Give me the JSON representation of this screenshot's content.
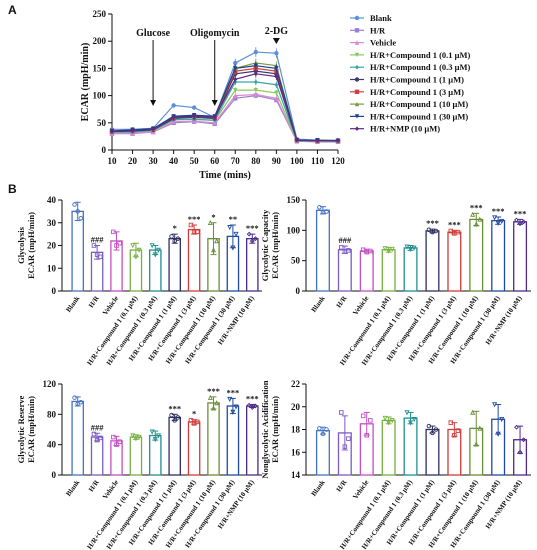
{
  "figure": {
    "panel_a_label": "A",
    "panel_b_label": "B"
  },
  "chart_data": [
    {
      "id": "panel-a",
      "type": "line",
      "xlabel": "Time (mins)",
      "ylabel": "ECAR (mpH/min)",
      "xlim": [
        10,
        120
      ],
      "ylim": [
        0,
        250
      ],
      "x_ticks": [
        10,
        20,
        30,
        40,
        50,
        60,
        70,
        80,
        90,
        100,
        110,
        120
      ],
      "y_ticks": [
        0,
        50,
        100,
        150,
        200,
        250
      ],
      "annotations": [
        {
          "text": "Glucose",
          "x": 30
        },
        {
          "text": "Oligomycin",
          "x": 60
        },
        {
          "text": "2-DG",
          "x": 90
        }
      ],
      "legend_position": "right",
      "x": [
        10,
        20,
        30,
        40,
        50,
        60,
        70,
        80,
        90,
        100,
        110,
        120
      ],
      "series": [
        {
          "name": "Blank",
          "color": "#5b8fd6",
          "marker": "circle",
          "values": [
            38,
            38,
            40,
            82,
            78,
            60,
            160,
            180,
            178,
            20,
            18,
            18
          ]
        },
        {
          "name": "H/R",
          "color": "#9b7fd4",
          "marker": "square",
          "values": [
            30,
            30,
            33,
            50,
            52,
            48,
            95,
            100,
            92,
            16,
            15,
            15
          ]
        },
        {
          "name": "Vehicle",
          "color": "#d987d6",
          "marker": "triangle",
          "values": [
            30,
            31,
            33,
            52,
            53,
            50,
            100,
            102,
            95,
            17,
            16,
            16
          ]
        },
        {
          "name": "H/R+Compound 1 (0.1 μM)",
          "color": "#8fc85a",
          "marker": "triangle-down",
          "values": [
            32,
            33,
            35,
            55,
            57,
            54,
            110,
            110,
            105,
            17,
            16,
            16
          ]
        },
        {
          "name": "H/R+Compound 1 (0.3 μM)",
          "color": "#3aa6a6",
          "marker": "diamond",
          "values": [
            33,
            33,
            36,
            56,
            56,
            55,
            125,
            125,
            120,
            17,
            17,
            16
          ]
        },
        {
          "name": "H/R+Compound 1 (1 μM)",
          "color": "#3a3a6e",
          "marker": "circle",
          "values": [
            34,
            35,
            37,
            58,
            60,
            58,
            140,
            145,
            140,
            18,
            17,
            17
          ]
        },
        {
          "name": "H/R+Compound 1 (3 μM)",
          "color": "#d23f3f",
          "marker": "square",
          "values": [
            34,
            36,
            38,
            60,
            62,
            60,
            145,
            150,
            145,
            18,
            17,
            17
          ]
        },
        {
          "name": "H/R+Compound 1 (10 μM)",
          "color": "#7a9a3a",
          "marker": "triangle",
          "values": [
            35,
            36,
            39,
            62,
            63,
            62,
            150,
            160,
            155,
            18,
            18,
            17
          ]
        },
        {
          "name": "H/R+Compound 1 (30 μM)",
          "color": "#1f3f8f",
          "marker": "triangle-down",
          "values": [
            35,
            37,
            39,
            62,
            64,
            62,
            150,
            155,
            150,
            18,
            18,
            17
          ]
        },
        {
          "name": "H/R+NMP (10 μM)",
          "color": "#5b2a86",
          "marker": "diamond",
          "values": [
            34,
            35,
            38,
            60,
            62,
            60,
            130,
            140,
            135,
            18,
            17,
            17
          ]
        }
      ]
    },
    {
      "id": "glycolysis",
      "type": "bar",
      "ylabel": "Glycolysis\nECAR (mpH/min)",
      "ylim": [
        0,
        40
      ],
      "y_ticks": [
        0,
        10,
        20,
        30,
        40
      ],
      "categories": [
        "Blank",
        "H/R",
        "Vehicle",
        "H/R+Compound 1 (0.1 μM)",
        "H/R+Compound 1 (0.3 μM)",
        "H/R+Compound 1 (1 μM)",
        "H/R+Compound 1 (3 μM)",
        "H/R+Compound 1 (10 μM)",
        "H/R+Compound 1 (30 μM)",
        "H/R+NMP (10 μM)"
      ],
      "values": [
        35,
        17,
        22,
        18,
        18,
        23,
        27,
        23,
        24,
        23
      ],
      "errors": [
        4,
        3,
        4,
        3,
        2,
        2,
        2,
        7,
        5,
        2
      ],
      "points": [
        [
          38,
          35,
          32
        ],
        [
          20,
          16,
          15
        ],
        [
          26,
          20,
          21
        ],
        [
          20,
          15,
          18
        ],
        [
          20,
          16,
          18
        ],
        [
          24,
          22,
          23
        ],
        [
          29,
          26,
          26
        ],
        [
          30,
          18,
          22
        ],
        [
          28,
          19,
          25
        ],
        [
          25,
          22,
          23
        ]
      ],
      "sig": [
        "",
        "###",
        "",
        "",
        "",
        "*",
        "***",
        "*",
        "**",
        "***"
      ]
    },
    {
      "id": "glycolytic-capacity",
      "type": "bar",
      "ylabel": "Glycolytic Capacity\nECAR (mpH/min)",
      "ylim": [
        0,
        150
      ],
      "y_ticks": [
        0,
        50,
        100,
        150
      ],
      "categories": [
        "Blank",
        "H/R",
        "Vehicle",
        "H/R+Compound 1 (0.1 μM)",
        "H/R+Compound 1 (0.3 μM)",
        "H/R+Compound 1 (1 μM)",
        "H/R+Compound 1 (3 μM)",
        "H/R+Compound 1 (10 μM)",
        "H/R+Compound 1 (30 μM)",
        "H/R+NMP (10 μM)"
      ],
      "values": [
        133,
        68,
        66,
        68,
        71,
        99,
        97,
        118,
        116,
        114
      ],
      "errors": [
        6,
        6,
        3,
        4,
        4,
        3,
        3,
        10,
        6,
        4
      ],
      "points": [
        [
          138,
          130,
          131
        ],
        [
          72,
          65,
          67
        ],
        [
          68,
          64,
          66
        ],
        [
          70,
          66,
          69
        ],
        [
          73,
          69,
          71
        ],
        [
          101,
          97,
          99
        ],
        [
          99,
          95,
          97
        ],
        [
          126,
          110,
          118
        ],
        [
          121,
          112,
          115
        ],
        [
          117,
          111,
          114
        ]
      ],
      "sig": [
        "",
        "###",
        "",
        "",
        "",
        "***",
        "***",
        "***",
        "***",
        "***"
      ]
    },
    {
      "id": "glycolytic-reserve",
      "type": "bar",
      "ylabel": "Glycolytic Reserve\nECAR (mpH/min)",
      "ylim": [
        0,
        120
      ],
      "y_ticks": [
        0,
        40,
        80,
        120
      ],
      "categories": [
        "Blank",
        "H/R",
        "Vehicle",
        "H/R+Compound 1 (0.1 μM)",
        "H/R+Compound 1 (0.3 μM)",
        "H/R+Compound 1 (1 μM)",
        "H/R+Compound 1 (3 μM)",
        "H/R+Compound 1 (10 μM)",
        "H/R+Compound 1 (30 μM)",
        "H/R+NMP (10 μM)"
      ],
      "values": [
        97,
        50,
        45,
        50,
        52,
        76,
        70,
        95,
        91,
        91
      ],
      "errors": [
        6,
        5,
        6,
        3,
        6,
        4,
        3,
        8,
        10,
        2
      ],
      "points": [
        [
          102,
          94,
          96
        ],
        [
          54,
          46,
          49
        ],
        [
          50,
          40,
          44
        ],
        [
          52,
          48,
          50
        ],
        [
          57,
          47,
          52
        ],
        [
          79,
          72,
          76
        ],
        [
          72,
          68,
          70
        ],
        [
          102,
          88,
          95
        ],
        [
          100,
          83,
          90
        ],
        [
          92,
          89,
          91
        ]
      ],
      "sig": [
        "",
        "###",
        "",
        "",
        "",
        "***",
        "*",
        "***",
        "***",
        "***"
      ]
    },
    {
      "id": "non-glycolytic-acidification",
      "type": "bar",
      "ylabel": "Nonglycolytic Acidification\nECAR (mpH/min)",
      "ylim": [
        14,
        22
      ],
      "y_ticks": [
        14,
        16,
        18,
        20,
        22
      ],
      "categories": [
        "Blank",
        "H/R",
        "Vehicle",
        "H/R+Compound 1 (0.1 μM)",
        "H/R+Compound 1 (0.3 μM)",
        "H/R+Compound 1 (1 μM)",
        "H/R+Compound 1 (3 μM)",
        "H/R+Compound 1 (10 μM)",
        "H/R+Compound 1 (30 μM)",
        "H/R+NMP (10 μM)"
      ],
      "values": [
        17.9,
        17.7,
        18.5,
        18.8,
        19.0,
        18.0,
        18.0,
        18.1,
        18.9,
        17.1
      ],
      "errors": [
        0.3,
        1.5,
        1.0,
        0.3,
        0.5,
        0.3,
        0.6,
        1.5,
        1.3,
        1.2
      ],
      "points": [
        [
          18.1,
          17.6,
          18.0
        ],
        [
          19.5,
          16.5,
          17.2
        ],
        [
          19.2,
          17.5,
          18.8
        ],
        [
          19.0,
          18.6,
          18.8
        ],
        [
          19.5,
          18.6,
          18.9
        ],
        [
          18.3,
          17.7,
          18.0
        ],
        [
          18.6,
          17.5,
          17.9
        ],
        [
          19.5,
          16.7,
          18.1
        ],
        [
          20.2,
          17.6,
          18.9
        ],
        [
          18.2,
          16.0,
          17.1
        ]
      ],
      "sig": [
        "",
        "",
        "",
        "",
        "",
        "",
        "",
        "",
        "",
        ""
      ]
    }
  ]
}
